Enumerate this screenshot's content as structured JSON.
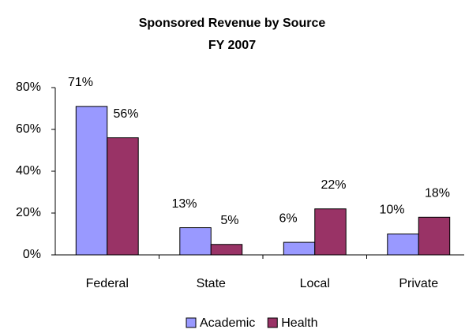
{
  "chart_data": {
    "type": "bar",
    "title": "Sponsored Revenue by Source",
    "subtitle": "FY 2007",
    "categories": [
      "Federal",
      "State",
      "Local",
      "Private"
    ],
    "series": [
      {
        "name": "Academic",
        "color": "#9999ff",
        "values": [
          71,
          13,
          6,
          10
        ],
        "value_labels": [
          "71%",
          "13%",
          "6%",
          "10%"
        ]
      },
      {
        "name": "Health",
        "color": "#993366",
        "values": [
          56,
          5,
          22,
          18
        ],
        "value_labels": [
          "56%",
          "5%",
          "22%",
          "18%"
        ]
      }
    ],
    "ylim": [
      0,
      80
    ],
    "yticks": [
      {
        "value": 0,
        "label": "0%"
      },
      {
        "value": 20,
        "label": "20%"
      },
      {
        "value": 40,
        "label": "40%"
      },
      {
        "value": 60,
        "label": "60%"
      },
      {
        "value": 80,
        "label": "80%"
      }
    ],
    "grid": false,
    "legend": "bottom"
  }
}
